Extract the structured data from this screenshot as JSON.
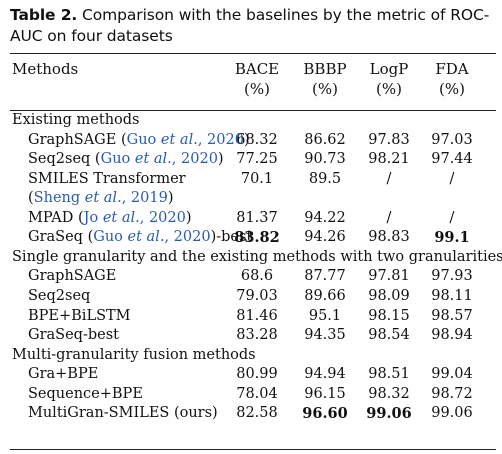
{
  "caption": {
    "label": "Table 2.",
    "text": " Comparison with the baselines by the metric of ROC-AUC on four datasets"
  },
  "header": {
    "methods": "Methods",
    "cols": [
      {
        "name": "BACE",
        "unit": "(%)"
      },
      {
        "name": "BBBP",
        "unit": "(%)"
      },
      {
        "name": "LogP",
        "unit": "(%)"
      },
      {
        "name": "FDA",
        "unit": "(%)"
      }
    ]
  },
  "rows": [
    {
      "type": "section",
      "name": "Existing methods"
    },
    {
      "type": "data",
      "name": "GraphSAGE",
      "ref": "Guo et al., 2020",
      "values": [
        "68.32",
        "86.62",
        "97.83",
        "97.03"
      ],
      "bold": []
    },
    {
      "type": "data",
      "name": "Seq2seq",
      "ref": "Guo et al., 2020",
      "values": [
        "77.25",
        "90.73",
        "98.21",
        "97.44"
      ],
      "bold": []
    },
    {
      "type": "data",
      "name": "SMILES Transformer",
      "values": [
        "70.1",
        "89.5",
        "/",
        "/"
      ],
      "bold": []
    },
    {
      "type": "cont",
      "ref": "Sheng et al., 2019"
    },
    {
      "type": "data",
      "name": "MPAD",
      "ref": "Jo et al., 2020",
      "values": [
        "81.37",
        "94.22",
        "/",
        "/"
      ],
      "bold": []
    },
    {
      "type": "data",
      "name": "GraSeq",
      "ref": "Guo et al., 2020",
      "suffix": "-best",
      "values": [
        "83.82",
        "94.26",
        "98.83",
        "99.1"
      ],
      "bold": [
        0,
        3
      ]
    },
    {
      "type": "section",
      "name": "Single granularity and the existing methods with two granularities"
    },
    {
      "type": "data",
      "name": "GraphSAGE",
      "values": [
        "68.6",
        "87.77",
        "97.81",
        "97.93"
      ],
      "bold": []
    },
    {
      "type": "data",
      "name": "Seq2seq",
      "values": [
        "79.03",
        "89.66",
        "98.09",
        "98.11"
      ],
      "bold": []
    },
    {
      "type": "data",
      "name": "BPE+BiLSTM",
      "values": [
        "81.46",
        "95.1",
        "98.15",
        "98.57"
      ],
      "bold": []
    },
    {
      "type": "data",
      "name": "GraSeq-best",
      "values": [
        "83.28",
        "94.35",
        "98.54",
        "98.94"
      ],
      "bold": []
    },
    {
      "type": "section",
      "name": "Multi-granularity fusion methods"
    },
    {
      "type": "data",
      "name": "Gra+BPE",
      "values": [
        "80.99",
        "94.94",
        "98.51",
        "99.04"
      ],
      "bold": []
    },
    {
      "type": "data",
      "name": "Sequence+BPE",
      "values": [
        "78.04",
        "96.15",
        "98.32",
        "98.72"
      ],
      "bold": []
    },
    {
      "type": "data",
      "name": "MultiGran-SMILES (ours)",
      "values": [
        "82.58",
        "96.60",
        "99.06",
        "99.06"
      ],
      "bold": [
        1,
        2
      ]
    }
  ]
}
